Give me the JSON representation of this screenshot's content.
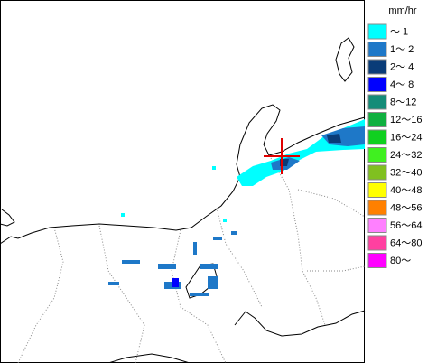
{
  "legend": {
    "unit": "mm/hr",
    "items": [
      {
        "label": "～ 1",
        "color": "#00ffff"
      },
      {
        "label": "1～ 2",
        "color": "#1e78c8"
      },
      {
        "label": "2～ 4",
        "color": "#0a3c78"
      },
      {
        "label": "4～ 8",
        "color": "#0000ff"
      },
      {
        "label": "8～12",
        "color": "#148c78"
      },
      {
        "label": "12～16",
        "color": "#10b040"
      },
      {
        "label": "16～24",
        "color": "#10d020"
      },
      {
        "label": "24～32",
        "color": "#40f020"
      },
      {
        "label": "32～40",
        "color": "#80c020"
      },
      {
        "label": "40～48",
        "color": "#ffff00"
      },
      {
        "label": "48～56",
        "color": "#ff8000"
      },
      {
        "label": "56～64",
        "color": "#ff80ff"
      },
      {
        "label": "64～80",
        "color": "#ff40a0"
      },
      {
        "label": "80～",
        "color": "#ff00ff"
      }
    ]
  }
}
